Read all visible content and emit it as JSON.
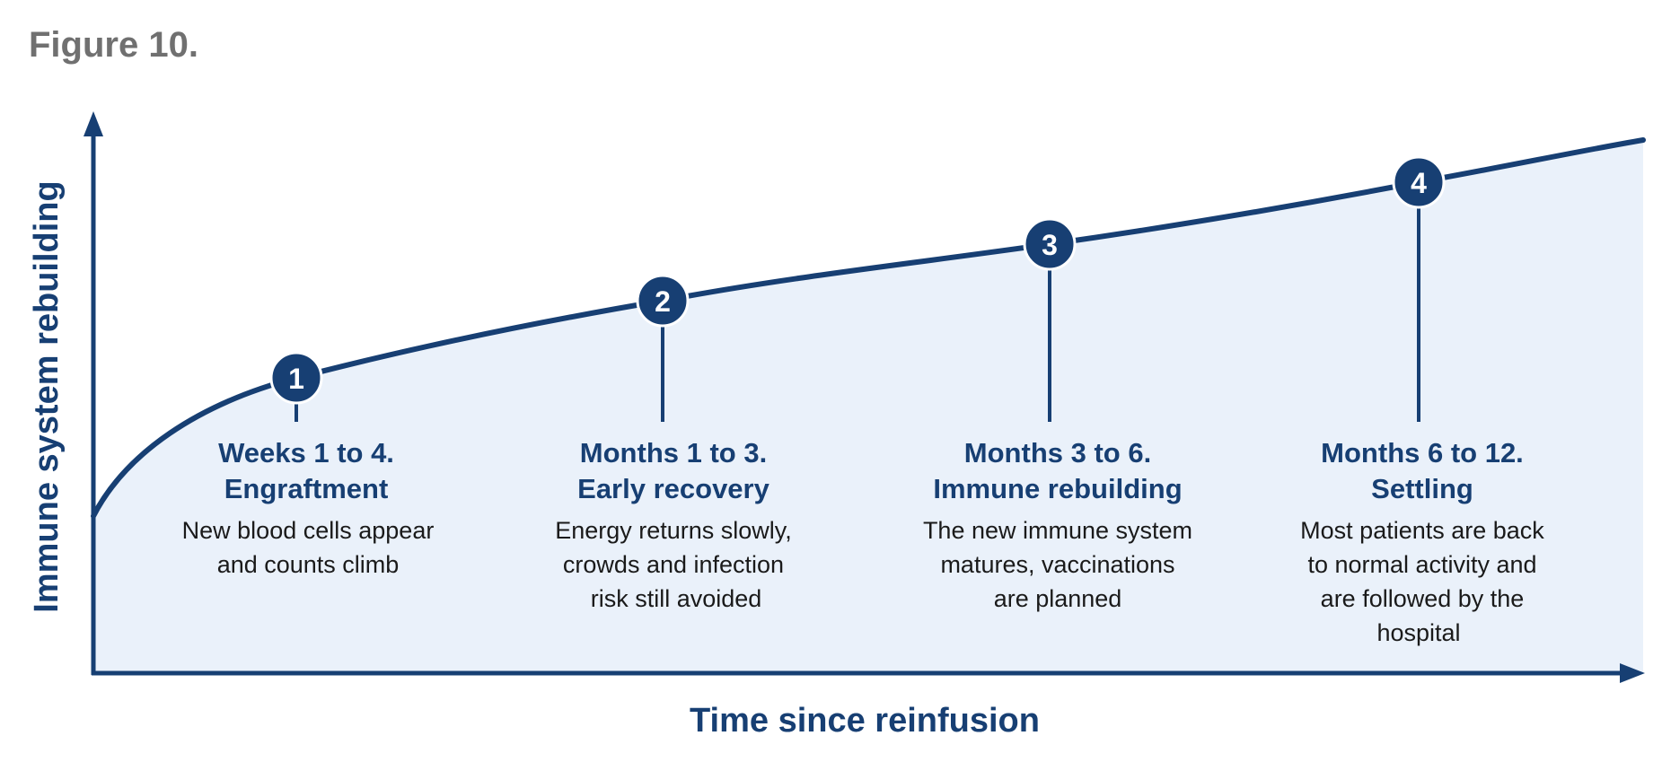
{
  "figure_label": "Figure 10.",
  "y_axis_label": "Immune system rebuilding",
  "x_axis_label": "Time since reinfusion",
  "colors": {
    "navy": "#173f73",
    "fill": "#eaf1fa",
    "figure_label": "#707070",
    "description_text": "#1a1a1a"
  },
  "stages": [
    {
      "number": "1",
      "heading_1": "Weeks 1 to 4.",
      "heading_2": "Engraftment",
      "desc": [
        "New blood cells appear",
        "and counts climb"
      ]
    },
    {
      "number": "2",
      "heading_1": "Months 1 to 3.",
      "heading_2": "Early recovery",
      "desc": [
        "Energy returns slowly,",
        "crowds and infection",
        "risk still avoided"
      ]
    },
    {
      "number": "3",
      "heading_1": "Months 3 to 6.",
      "heading_2": "Immune rebuilding",
      "desc": [
        "The new immune system",
        "matures, vaccinations",
        "are planned"
      ]
    },
    {
      "number": "4",
      "heading_1": "Months 6 to 12.",
      "heading_2": "Settling",
      "desc": [
        "Most patients are back",
        "to normal activity and",
        "are followed by the",
        "hospital"
      ]
    }
  ]
}
